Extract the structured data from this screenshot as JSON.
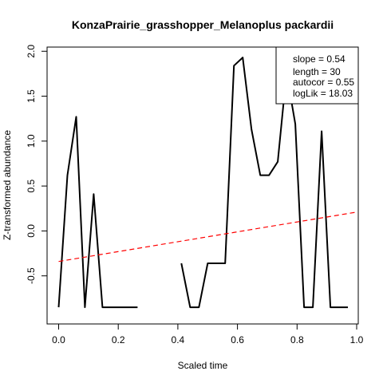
{
  "chart_data": {
    "type": "line",
    "title": "KonzaPrairie_grasshopper_Melanoplus packardii",
    "xlabel": "Scaled time",
    "ylabel": "Z-transformed abundance",
    "xlim": [
      0.0,
      1.0
    ],
    "ylim": [
      -0.92,
      2.02
    ],
    "x_ticks": [
      "0.0",
      "0.2",
      "0.4",
      "0.6",
      "0.8",
      "1.0"
    ],
    "y_ticks": [
      "-0.5",
      "0.0",
      "0.5",
      "1.0",
      "1.5",
      "2.0"
    ],
    "grid": false,
    "legend_position": "top-right",
    "series": [
      {
        "color": "#000000",
        "style": "solid",
        "x": [
          0.0,
          0.0294,
          0.0588,
          0.0882,
          0.1176,
          0.1471,
          0.1765,
          0.2059,
          0.2353,
          0.2647,
          0.2941,
          0.3235,
          0.3529,
          0.3824,
          0.4118,
          0.4412,
          0.4706,
          0.5,
          0.5294,
          0.5588,
          0.5882,
          0.6176,
          0.6471,
          0.6765,
          0.7059,
          0.7353,
          0.7647,
          0.7941,
          0.8235,
          0.8529,
          0.8824,
          0.9118,
          0.9412,
          0.9706
        ],
        "y": [
          -0.85,
          0.62,
          1.27,
          -0.85,
          0.41,
          -0.85,
          -0.85,
          -0.85,
          -0.85,
          -0.85,
          null,
          null,
          null,
          null,
          -0.36,
          -0.85,
          -0.85,
          -0.36,
          -0.36,
          -0.36,
          1.84,
          1.93,
          1.13,
          0.62,
          0.62,
          0.77,
          1.76,
          1.19,
          -0.85,
          -0.85,
          1.11,
          -0.85,
          -0.85,
          -0.85
        ]
      },
      {
        "color": "#ff0000",
        "style": "dashed",
        "x": [
          0.0,
          1.0
        ],
        "y": [
          -0.34,
          0.21
        ]
      }
    ],
    "legend_entries": [
      "slope = 0.54",
      "length = 30",
      "autocor = 0.55",
      "logLik = 18.03"
    ]
  }
}
